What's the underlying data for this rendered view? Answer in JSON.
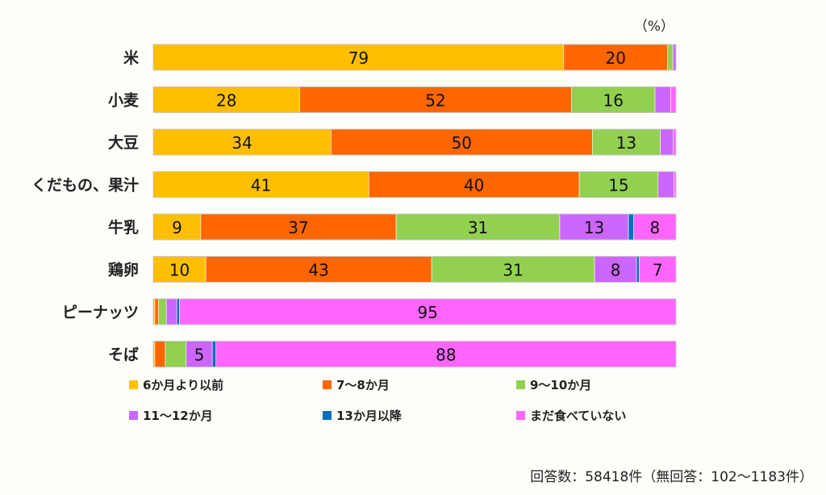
{
  "chart_data": {
    "type": "bar",
    "orientation": "horizontal",
    "stacked": true,
    "unit_label": "（%）",
    "xlim": [
      0,
      100
    ],
    "categories": [
      "米",
      "小麦",
      "大豆",
      "くだもの、果汁",
      "牛乳",
      "鶏卵",
      "ピーナッツ",
      "そば"
    ],
    "series": [
      {
        "name": "6か月より以前",
        "color": "#ffbf00",
        "values": [
          79,
          28,
          34,
          41,
          9,
          10,
          0.3,
          0.3
        ]
      },
      {
        "name": "7～8か月",
        "color": "#ff6600",
        "values": [
          20,
          52,
          50,
          40,
          37,
          43,
          0.7,
          2
        ]
      },
      {
        "name": "9～10か月",
        "color": "#92d050",
        "values": [
          1,
          16,
          13,
          15,
          31,
          31,
          1.5,
          4
        ]
      },
      {
        "name": "11～12か月",
        "color": "#cc66ff",
        "values": [
          0.6,
          3,
          2.5,
          3,
          13,
          8,
          2,
          5
        ]
      },
      {
        "name": "13か月以降",
        "color": "#0070c0",
        "values": [
          0,
          0,
          0,
          0,
          1,
          0.5,
          0.5,
          0.7
        ]
      },
      {
        "name": "まだ食べていない",
        "color": "#ff66ff",
        "values": [
          0,
          1,
          0.5,
          0.4,
          8,
          7,
          95,
          88
        ]
      }
    ],
    "data_labels": [
      [
        "79",
        "20",
        null,
        null,
        null,
        null
      ],
      [
        "28",
        "52",
        "16",
        null,
        null,
        null
      ],
      [
        "34",
        "50",
        "13",
        null,
        null,
        null
      ],
      [
        "41",
        "40",
        "15",
        null,
        null,
        null
      ],
      [
        "9",
        "37",
        "31",
        "13",
        null,
        "8"
      ],
      [
        "10",
        "43",
        "31",
        "8",
        null,
        "7"
      ],
      [
        null,
        null,
        null,
        null,
        null,
        "95"
      ],
      [
        null,
        null,
        null,
        "5",
        null,
        "88"
      ]
    ],
    "grid": false,
    "legend_position": "bottom"
  },
  "footnote": "回答数：58418件（無回答：102～1183件）"
}
